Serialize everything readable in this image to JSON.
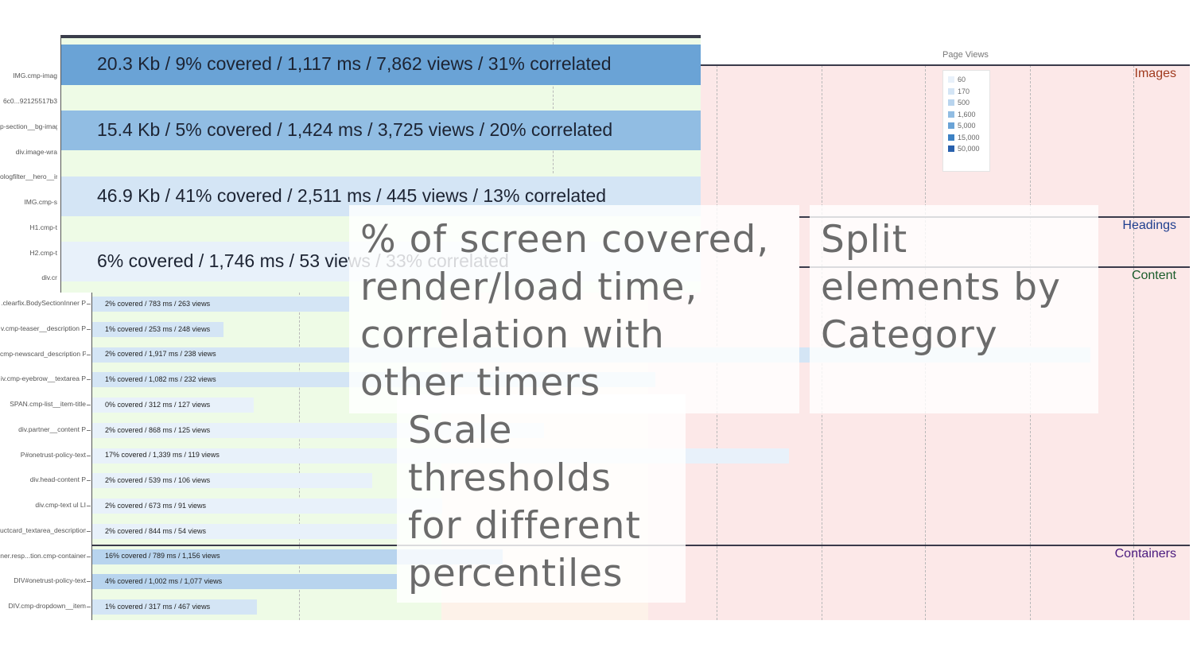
{
  "legend_title": "Page Views",
  "legend": [
    {
      "label": "60",
      "color": "#e8f1fa"
    },
    {
      "label": "170",
      "color": "#d4e5f5"
    },
    {
      "label": "500",
      "color": "#b8d4ee"
    },
    {
      "label": "1,600",
      "color": "#91bde3"
    },
    {
      "label": "5,000",
      "color": "#6aa3d6"
    },
    {
      "label": "15,000",
      "color": "#3d82c4"
    },
    {
      "label": "50,000",
      "color": "#2860ad"
    }
  ],
  "categories": {
    "images": {
      "label": "Images",
      "color": "#a03a1e"
    },
    "headings": {
      "label": "Headings",
      "color": "#1f3f8f"
    },
    "content": {
      "label": "Content",
      "color": "#1a5c2a"
    },
    "containers": {
      "label": "Containers",
      "color": "#4a1a7e"
    }
  },
  "chart_data": {
    "type": "bar",
    "title": "",
    "legend_title": "Page Views",
    "rows": [
      {
        "label": "IMG.cmp-imag",
        "category": "Images",
        "bar_text": "20.3 Kb / 9% covered / 1,117 ms / 7,862 views / 31% correlated",
        "size_kb": 20.3,
        "coverage_pct": 9,
        "time_ms": 1117,
        "views": 7862,
        "correlated_pct": 31
      },
      {
        "label": "6c0...92125517b3",
        "category": "Images",
        "bar_text": "",
        "views": null
      },
      {
        "label": "p-section__bg-imag",
        "category": "Images",
        "bar_text": "15.4 Kb / 5% covered / 1,424 ms / 3,725 views / 20% correlated",
        "size_kb": 15.4,
        "coverage_pct": 5,
        "time_ms": 1424,
        "views": 3725,
        "correlated_pct": 20
      },
      {
        "label": "div.image-wra",
        "category": "Images",
        "bar_text": "",
        "views": null
      },
      {
        "label": "ologfilter__hero__in",
        "category": "Images",
        "bar_text": "",
        "views": null
      },
      {
        "label": "IMG.cmp-s",
        "category": "Images",
        "bar_text": "46.9 Kb / 41% covered / 2,511 ms / 445 views / 13% correlated",
        "size_kb": 46.9,
        "coverage_pct": 41,
        "time_ms": 2511,
        "views": 445,
        "correlated_pct": 13
      },
      {
        "label": "H1.cmp-t",
        "category": "Headings",
        "bar_text": "",
        "views": null
      },
      {
        "label": "H2.cmp-t",
        "category": "Headings",
        "bar_text": "6% covered / 1,746 ms / 53 views / 33% correlated",
        "coverage_pct": 6,
        "time_ms": 1746,
        "views": 53,
        "correlated_pct": 33
      },
      {
        "label": "div.cr",
        "category": "Headings",
        "bar_text": "",
        "views": null
      },
      {
        "label": ".clearfix.BodySectionInner P",
        "category": "Content",
        "bar_text": "2% covered / 783 ms / 263 views",
        "coverage_pct": 2,
        "time_ms": 783,
        "views": 263
      },
      {
        "label": "v.cmp-teaser__description P",
        "category": "Content",
        "bar_text": "1% covered / 253 ms / 248 views",
        "coverage_pct": 1,
        "time_ms": 253,
        "views": 248
      },
      {
        "label": "cmp-newscard_description P",
        "category": "Content",
        "bar_text": "2% covered / 1,917 ms / 238 views",
        "coverage_pct": 2,
        "time_ms": 1917,
        "views": 238
      },
      {
        "label": "iv.cmp-eyebrow__textarea P",
        "category": "Content",
        "bar_text": "1% covered / 1,082 ms / 232 views",
        "coverage_pct": 1,
        "time_ms": 1082,
        "views": 232
      },
      {
        "label": "SPAN.cmp-list__item-title",
        "category": "Content",
        "bar_text": "0% covered / 312 ms / 127 views",
        "coverage_pct": 0,
        "time_ms": 312,
        "views": 127
      },
      {
        "label": "div.partner__content P",
        "category": "Content",
        "bar_text": "2% covered / 868 ms / 125 views",
        "coverage_pct": 2,
        "time_ms": 868,
        "views": 125
      },
      {
        "label": "P#onetrust-policy-text",
        "category": "Content",
        "bar_text": "17% covered / 1,339 ms / 119 views",
        "coverage_pct": 17,
        "time_ms": 1339,
        "views": 119
      },
      {
        "label": "div.head-content P",
        "category": "Content",
        "bar_text": "2% covered / 539 ms / 106 views",
        "coverage_pct": 2,
        "time_ms": 539,
        "views": 106
      },
      {
        "label": "div.cmp-text ul LI",
        "category": "Content",
        "bar_text": "2% covered / 673 ms / 91 views",
        "coverage_pct": 2,
        "time_ms": 673,
        "views": 91
      },
      {
        "label": "uctcard_textarea_description",
        "category": "Content",
        "bar_text": "2% covered / 844 ms / 54 views",
        "coverage_pct": 2,
        "time_ms": 844,
        "views": 54
      },
      {
        "label": "ner.resp...tion.cmp-container",
        "category": "Containers",
        "bar_text": "16% covered / 789 ms / 1,156 views",
        "coverage_pct": 16,
        "time_ms": 789,
        "views": 1156
      },
      {
        "label": "DIV#onetrust-policy-text",
        "category": "Containers",
        "bar_text": "4% covered / 1,002 ms / 1,077 views",
        "coverage_pct": 4,
        "time_ms": 1002,
        "views": 1077
      },
      {
        "label": "DIV.cmp-dropdown__item",
        "category": "Containers",
        "bar_text": "1% covered / 317 ms / 467 views",
        "coverage_pct": 1,
        "time_ms": 317,
        "views": 467
      }
    ]
  },
  "annotations": {
    "coverage": [
      "% of screen covered,",
      "render/load time,",
      "correlation with",
      "other timers"
    ],
    "split": [
      "Split",
      "elements by",
      "Category"
    ],
    "scale": [
      "Scale",
      "thresholds",
      "for different",
      "percentiles"
    ]
  }
}
